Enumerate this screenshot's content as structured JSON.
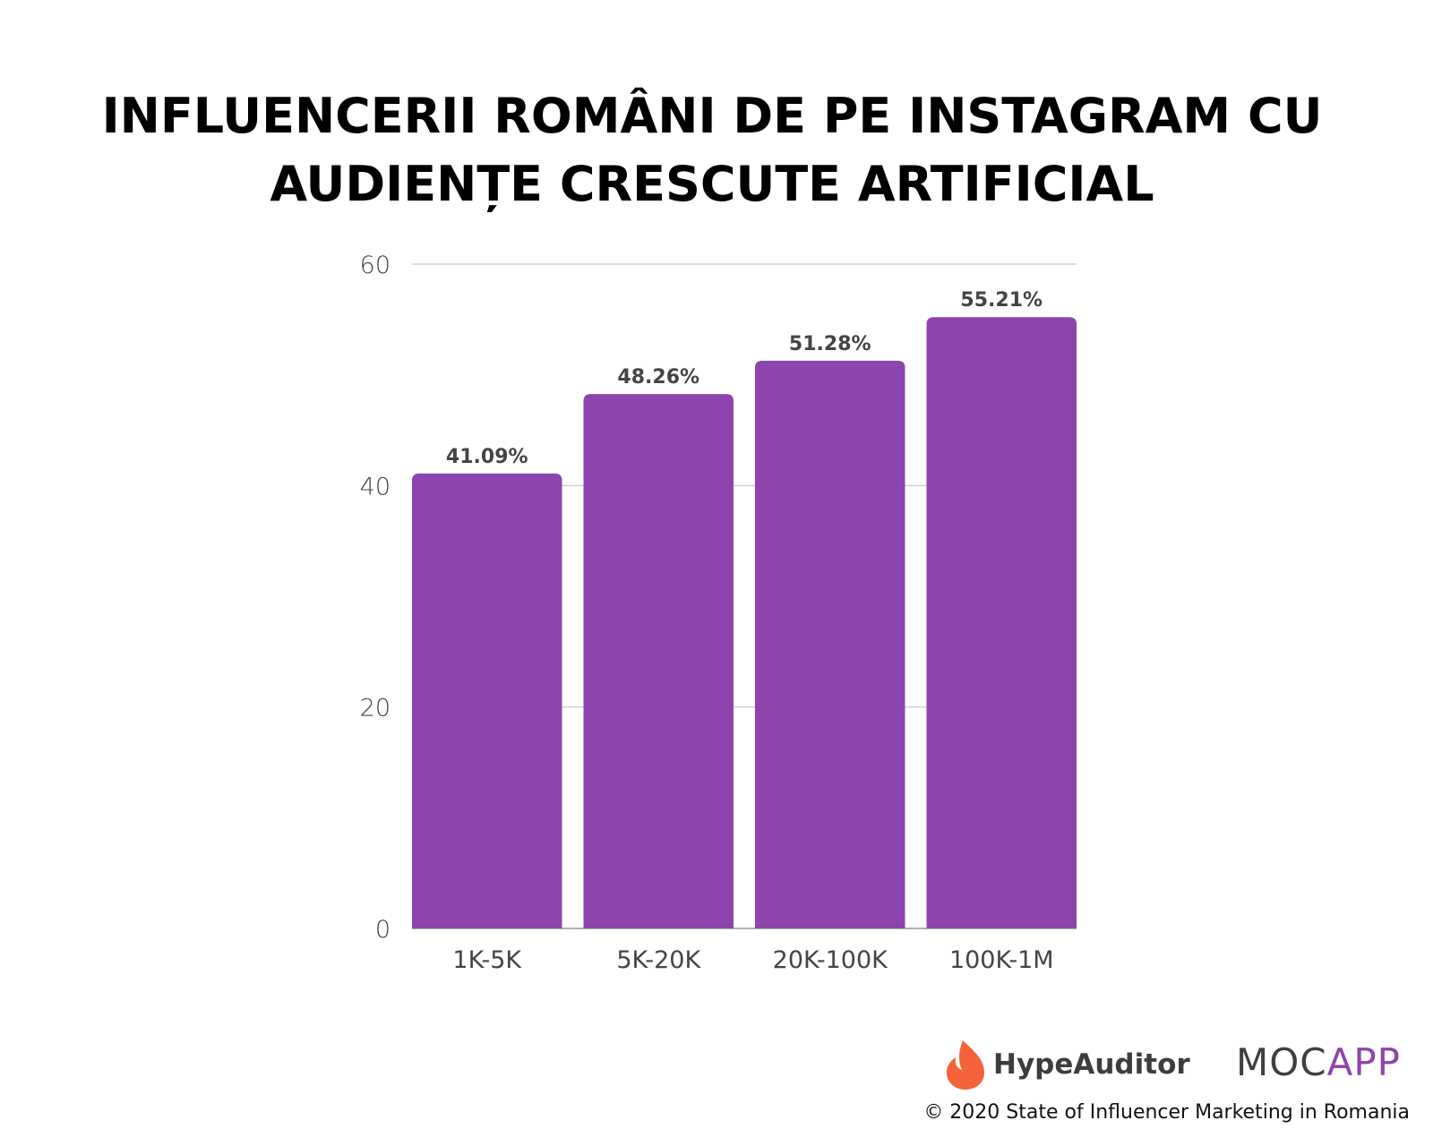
{
  "title_lines": [
    "INFLUENCERII ROMÂNI DE PE INSTAGRAM CU",
    "AUDIENȚE CRESCUTE ARTIFICIAL"
  ],
  "chart_data": {
    "type": "bar",
    "title": "INFLUENCERII ROMÂNI DE PE INSTAGRAM CU AUDIENȚE CRESCUTE ARTIFICIAL",
    "categories": [
      "1K-5K",
      "5K-20K",
      "20K-100K",
      "100K-1M"
    ],
    "values": [
      41.09,
      48.26,
      51.28,
      55.21
    ],
    "data_labels": [
      "41.09%",
      "48.26%",
      "51.28%",
      "55.21%"
    ],
    "xlabel": "",
    "ylabel": "",
    "ylim": [
      0,
      60
    ],
    "yticks": [
      "0",
      "20",
      "40",
      "60"
    ],
    "grid": true,
    "bar_color": "#8e44ad"
  },
  "footer": {
    "logo_hypeauditor": "HypeAuditor",
    "logo_mocapp_dark": "MOC",
    "logo_mocapp_accent": "APP",
    "credit": "© 2020 State of Influencer Marketing in Romania",
    "flame_color": "#f4633a"
  }
}
